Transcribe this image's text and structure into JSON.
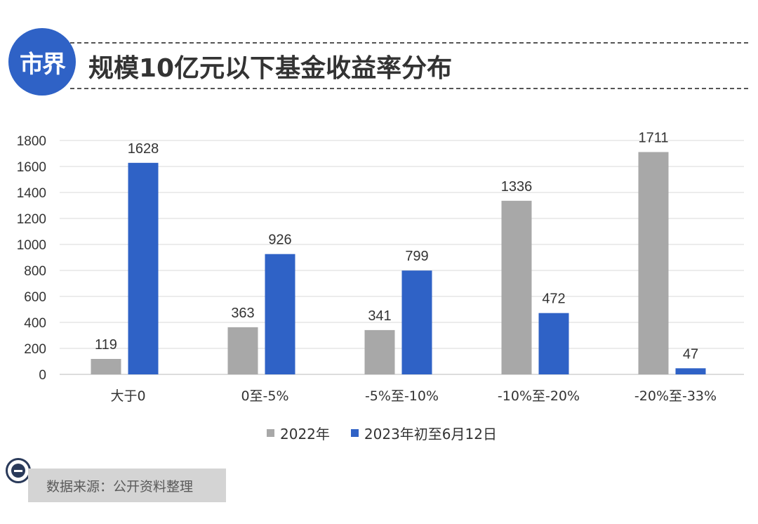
{
  "header": {
    "logo_text": "市界",
    "title": "规模10亿元以下基金收益率分布"
  },
  "colors": {
    "accent": "#2f62c6",
    "series_2022": "#a8a8a8",
    "series_2023": "#2f62c6"
  },
  "chart_data": {
    "type": "bar",
    "title": "规模10亿元以下基金收益率分布",
    "xlabel": "",
    "ylabel": "",
    "ylim": [
      0,
      1800
    ],
    "yticks": [
      0,
      200,
      400,
      600,
      800,
      1000,
      1200,
      1400,
      1600,
      1800
    ],
    "grid": true,
    "legend_position": "bottom",
    "categories": [
      "大于0",
      "0至-5%",
      "-5%至-10%",
      "-10%至-20%",
      "-20%至-33%"
    ],
    "series": [
      {
        "name": "2022年",
        "values": [
          119,
          363,
          341,
          1336,
          1711
        ]
      },
      {
        "name": "2023年初至6月12日",
        "values": [
          1628,
          926,
          799,
          472,
          47
        ]
      }
    ]
  },
  "source": {
    "icon": "minus-circle-icon",
    "text": "数据来源：公开资料整理"
  }
}
